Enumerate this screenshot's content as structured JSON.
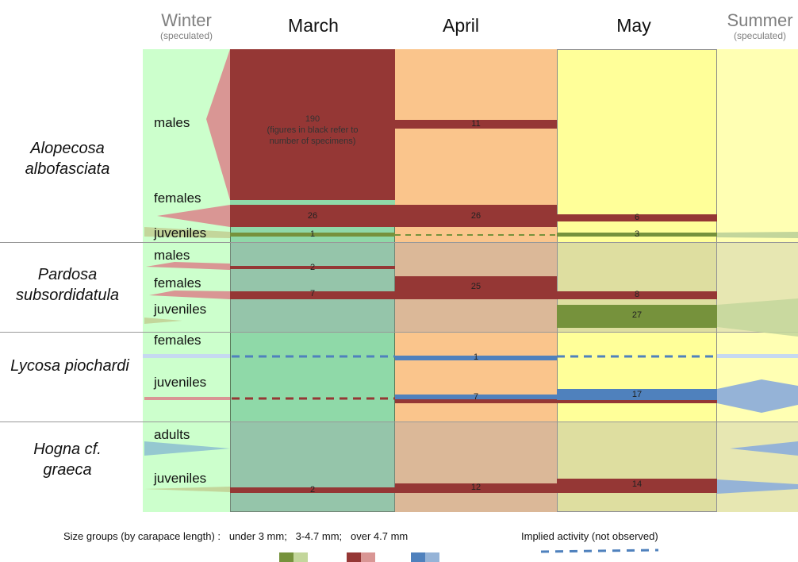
{
  "header": {
    "winter": {
      "title": "Winter",
      "sub": "(speculated)"
    },
    "months": [
      "March",
      "April",
      "May"
    ],
    "summer": {
      "title": "Summer",
      "sub": "(speculated)"
    }
  },
  "species": [
    {
      "name_line1": "Alopecosa",
      "name_line2": "albofasciata",
      "rows": [
        "males",
        "females",
        "juveniles"
      ]
    },
    {
      "name_line1": "Pardosa",
      "name_line2": "subsordidatula",
      "rows": [
        "males",
        "females",
        "juveniles"
      ]
    },
    {
      "name_line1": "Lycosa piochardi",
      "name_line2": "",
      "rows": [
        "females",
        "juveniles"
      ]
    },
    {
      "name_line1": "Hogna cf.",
      "name_line2": "graeca",
      "rows": [
        "adults",
        "juveniles"
      ]
    }
  ],
  "note": {
    "count": "190",
    "line1": "(figures in black refer to",
    "line2": "number of specimens)"
  },
  "counts": {
    "aa_males_april": "11",
    "aa_females_march": "26",
    "aa_females_april": "26",
    "aa_females_may": "6",
    "aa_juveniles_march": "1",
    "aa_juveniles_may": "3",
    "ps_males_march": "2",
    "ps_females_march": "7",
    "ps_females_april": "25",
    "ps_females_may": "8",
    "ps_juveniles_may": "27",
    "lp_females_april": "1",
    "lp_juveniles_april": "7",
    "lp_juveniles_may": "17",
    "hg_juveniles_march": "2",
    "hg_juveniles_april": "12",
    "hg_juveniles_may": "14"
  },
  "legend": {
    "size_groups": "Size groups (by carapace length) :   under 3 mm;   3-4.7 mm;   over 4.7 mm",
    "implied": "Implied activity (not observed)"
  },
  "colors": {
    "under3_dark": "#76923c",
    "under3_light": "#c3d69b",
    "mid_dark": "#953735",
    "mid_light": "#d99694",
    "over47_dark": "#4f81bd",
    "over47_light": "#95b3d7",
    "winter_bg": "#ccffcc",
    "march_bg": "#92d7a2",
    "april_bg": "#fac58c",
    "may_bg": "#ffff99",
    "summer_bg": "#ffffb3"
  }
}
